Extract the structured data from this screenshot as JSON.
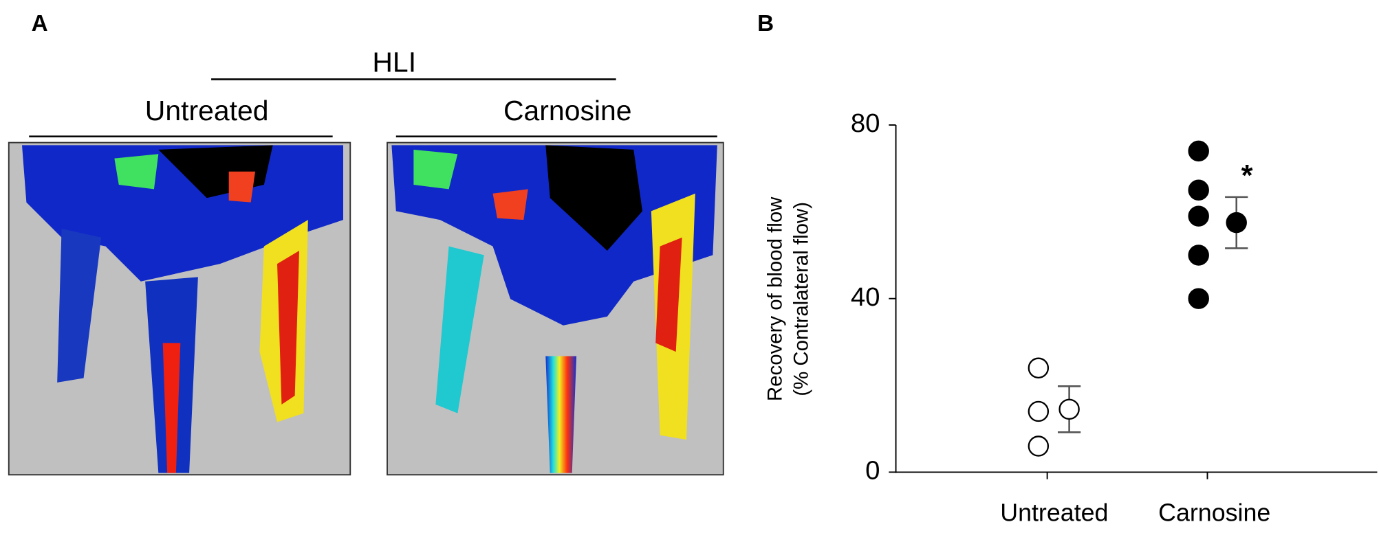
{
  "panel_a": {
    "label": "A",
    "group": "HLI",
    "conditions": [
      "Untreated",
      "Carnosine"
    ]
  },
  "chart_data": {
    "type": "scatter",
    "label": "B",
    "ylabel": [
      "Recovery of  blood flow",
      "(% Contralateral flow)"
    ],
    "categories": [
      "Untreated",
      "Carnosine"
    ],
    "points": [
      [
        24,
        14,
        6
      ],
      [
        74,
        65,
        59,
        50,
        40
      ]
    ],
    "means": [
      14.5,
      57.5
    ],
    "errors": [
      5.3,
      5.9
    ],
    "marker_fill": [
      "#ffffff",
      "#000000"
    ],
    "annotation": "*",
    "ylim": [
      0,
      80
    ],
    "yticks": [
      0,
      40,
      80
    ]
  }
}
